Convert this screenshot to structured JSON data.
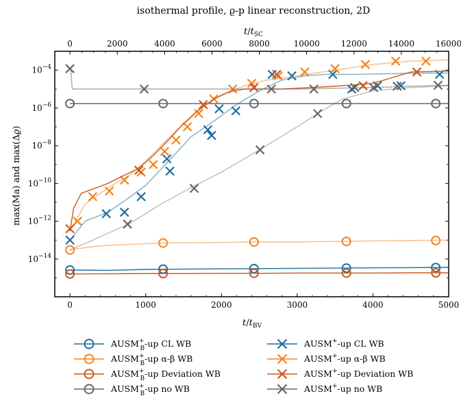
{
  "chart_data": {
    "type": "line",
    "title": "isothermal profile, ϱ-p linear reconstruction, 2D",
    "xlabel": "t/t_BV",
    "xlabel_top": "t/t_SC",
    "ylabel": "max(Ma) and max(Δϱ)",
    "yscale": "log",
    "xlim": [
      -200,
      5000
    ],
    "xlim_top": [
      -640,
      16000
    ],
    "ylim": [
      1e-16,
      0.001
    ],
    "x_ticks": [
      "0",
      "1000",
      "2000",
      "3000",
      "4000",
      "5000"
    ],
    "x_ticks_top": [
      "0",
      "2000",
      "4000",
      "6000",
      "8000",
      "10000",
      "12000",
      "14000",
      "16000"
    ],
    "y_ticks": [
      "10^-14",
      "10^-12",
      "10^-10",
      "10^-8",
      "10^-6",
      "10^-4"
    ],
    "legend_placement": "below",
    "series": [
      {
        "name": "AUSM_B^+-up CL WB",
        "legend_main": "AUSM",
        "legend_sup": "+",
        "legend_sub": "B",
        "legend_rest": "-up CL WB",
        "color": "#1f6ea1",
        "marker": "circle",
        "style": "solid",
        "x": [
          0,
          500,
          1000,
          1500,
          2000,
          2500,
          3000,
          3500,
          4000,
          4500,
          5000
        ],
        "y": [
          2.6e-15,
          2.5e-15,
          2.8e-15,
          2.9e-15,
          3e-15,
          3.1e-15,
          3.2e-15,
          3.3e-15,
          3.4e-15,
          3.5e-15,
          3.6e-15
        ],
        "markers_x": [
          0,
          1230,
          2430,
          3650,
          4830
        ],
        "markers_y": [
          2.6e-15,
          2.9e-15,
          3.1e-15,
          3.3e-15,
          3.5e-15
        ]
      },
      {
        "name": "AUSM_B^+-up α-β WB",
        "legend_main": "AUSM",
        "legend_sup": "+",
        "legend_sub": "B",
        "legend_rest": "-up α-β WB",
        "color": "#f5841f",
        "marker": "circle",
        "style": "dotted",
        "x": [
          0,
          200,
          400,
          600,
          800,
          1000,
          1200,
          1500,
          2000,
          2500,
          3000,
          3500,
          4000,
          4500,
          5000
        ],
        "y": [
          3e-14,
          4e-14,
          5e-14,
          5.5e-14,
          6e-14,
          6.5e-14,
          7e-14,
          7.2e-14,
          7.5e-14,
          8e-14,
          8e-14,
          8.5e-14,
          9e-14,
          9.5e-14,
          1e-13
        ],
        "markers_x": [
          0,
          1230,
          2430,
          3650,
          4830
        ],
        "markers_y": [
          3e-14,
          7e-14,
          8e-14,
          8.5e-14,
          9.5e-14
        ]
      },
      {
        "name": "AUSM_B^+-up Deviation WB",
        "legend_main": "AUSM",
        "legend_sup": "+",
        "legend_sub": "B",
        "legend_rest": "-up Deviation WB",
        "color": "#c9581a",
        "marker": "circle",
        "style": "solid",
        "x": [
          0,
          500,
          1000,
          1500,
          2000,
          2500,
          3000,
          3500,
          4000,
          4500,
          5000
        ],
        "y": [
          1.6e-15,
          1.65e-15,
          1.7e-15,
          1.7e-15,
          1.75e-15,
          1.75e-15,
          1.8e-15,
          1.8e-15,
          1.8e-15,
          1.85e-15,
          1.85e-15
        ],
        "markers_x": [
          0,
          1230,
          2430,
          3650,
          4830
        ],
        "markers_y": [
          1.6e-15,
          1.7e-15,
          1.75e-15,
          1.8e-15,
          1.85e-15
        ]
      },
      {
        "name": "AUSM_B^+-up no WB",
        "legend_main": "AUSM",
        "legend_sup": "+",
        "legend_sub": "B",
        "legend_rest": "-up no WB",
        "color": "#666666",
        "marker": "circle",
        "style": "solid",
        "x": [
          0,
          5000
        ],
        "y": [
          1.7e-06,
          1.7e-06
        ],
        "markers_x": [
          0,
          1230,
          2430,
          3650,
          4830
        ],
        "markers_y": [
          1.7e-06,
          1.7e-06,
          1.7e-06,
          1.7e-06,
          1.7e-06
        ]
      },
      {
        "name": "AUSM^+-up CL WB",
        "legend_main": "AUSM",
        "legend_sup": "+",
        "legend_sub": "",
        "legend_rest": "-up CL WB",
        "color": "#1f6ea1",
        "marker": "x",
        "style": "dotted",
        "x": [
          0,
          200,
          500,
          800,
          1000,
          1300,
          1600,
          1900,
          2200,
          2500,
          2800,
          3100,
          3400,
          3800,
          4200,
          4600,
          5000
        ],
        "y": [
          1e-13,
          1e-12,
          3e-12,
          2e-11,
          8e-11,
          1.5e-09,
          3e-08,
          2e-07,
          1.5e-06,
          8e-06,
          3e-05,
          5e-05,
          6e-05,
          6e-05,
          6.5e-05,
          7e-05,
          7e-05
        ],
        "markers_x": [
          0,
          480,
          720,
          940,
          1280,
          1320,
          1820,
          1870,
          1970,
          2190,
          2670,
          2930,
          3470,
          3720,
          4060,
          4370,
          4880
        ],
        "markers_y": [
          1e-13,
          2.5e-12,
          3e-12,
          2e-11,
          2e-09,
          4.5e-10,
          7e-08,
          3.5e-08,
          9e-07,
          7e-07,
          6e-05,
          5e-05,
          6e-05,
          1e-05,
          1.5e-05,
          1.5e-05,
          6e-05
        ]
      },
      {
        "name": "AUSM^+-up α-β WB",
        "legend_main": "AUSM",
        "legend_sup": "+",
        "legend_sub": "",
        "legend_rest": "-up α-β WB",
        "color": "#f5841f",
        "marker": "x",
        "style": "dotted",
        "x": [
          0,
          200,
          400,
          600,
          800,
          1000,
          1200,
          1400,
          1600,
          1800,
          2000,
          2300,
          2600,
          3000,
          3500,
          4000,
          4500,
          5000
        ],
        "y": [
          3e-13,
          8e-12,
          3e-11,
          1e-10,
          3e-10,
          1.5e-09,
          1e-08,
          6e-08,
          3e-07,
          1.5e-06,
          5e-06,
          1.5e-05,
          3e-05,
          5e-05,
          0.0001,
          0.0002,
          0.0003,
          0.00035
        ],
        "markers_x": [
          100,
          300,
          520,
          720,
          940,
          1100,
          1250,
          1400,
          1550,
          1700,
          1900,
          2150,
          2400,
          2750,
          3100,
          3500,
          3900,
          4300,
          4700
        ],
        "markers_y": [
          1e-12,
          2e-11,
          4e-11,
          1.5e-10,
          4e-10,
          1e-09,
          5e-09,
          2e-08,
          1e-07,
          5e-07,
          3e-06,
          1e-05,
          2e-05,
          5e-05,
          8e-05,
          0.00012,
          0.0002,
          0.0003,
          0.0003
        ]
      },
      {
        "name": "AUSM^+-up Deviation WB",
        "legend_main": "AUSM",
        "legend_sup": "+",
        "legend_sub": "",
        "legend_rest": "-up Deviation WB",
        "color": "#c9581a",
        "marker": "x",
        "style": "solid",
        "x": [
          0,
          50,
          150,
          300,
          500,
          700,
          900,
          1100,
          1300,
          1500,
          1700,
          1900,
          2100,
          2300,
          2500,
          2800,
          3200,
          3600,
          4000,
          4500,
          5000
        ],
        "y": [
          3e-13,
          5e-12,
          3e-11,
          5e-11,
          1e-10,
          2.5e-10,
          6e-10,
          3e-09,
          2e-08,
          1.5e-07,
          8e-07,
          3e-06,
          7e-06,
          1e-05,
          1e-05,
          1e-05,
          1.2e-05,
          1.5e-05,
          2e-05,
          8e-05,
          9e-05
        ],
        "markers_x": [
          0,
          910,
          1760,
          2430,
          2730,
          3870,
          4580
        ],
        "markers_y": [
          4e-13,
          5e-10,
          1.5e-06,
          1.2e-05,
          6e-05,
          1.5e-05,
          8e-05
        ]
      },
      {
        "name": "AUSM^+-up no WB",
        "legend_main": "AUSM",
        "legend_sup": "+",
        "legend_sub": "",
        "legend_rest": "-up no WB",
        "color": "#666666",
        "marker": "x",
        "style": "dotted",
        "x": [
          0,
          10,
          30,
          50,
          500,
          800,
          1200,
          1600,
          2000,
          2500,
          3000,
          3500,
          4000,
          4500,
          5000
        ],
        "y": [
          0.00012,
          0.00012,
          1e-05,
          1e-05,
          1e-05,
          1e-05,
          1e-05,
          1e-05,
          1e-05,
          1e-05,
          1e-05,
          1.1e-05,
          1.2e-05,
          1.4e-05,
          1.6e-05
        ],
        "extra_line_x": [
          0,
          300,
          800,
          1200,
          1600,
          2000,
          2500,
          3000,
          3300,
          3600,
          4000,
          4500,
          5000
        ],
        "extra_line_y": [
          3e-14,
          1e-13,
          8e-13,
          8e-12,
          6e-11,
          4e-10,
          6e-09,
          1e-07,
          6e-07,
          3e-06,
          8e-06,
          1.2e-05,
          1.5e-05
        ],
        "markers_x": [
          0,
          980,
          2660,
          3220,
          3760,
          4010,
          4320,
          4860
        ],
        "markers_y": [
          0.00012,
          1e-05,
          1e-05,
          1e-05,
          1.2e-05,
          1.2e-05,
          1.4e-05,
          1.6e-05
        ],
        "markers2_x": [
          760,
          1640,
          2510,
          3270
        ],
        "markers2_y": [
          7e-13,
          5.5e-11,
          6e-09,
          5e-07
        ]
      }
    ]
  }
}
